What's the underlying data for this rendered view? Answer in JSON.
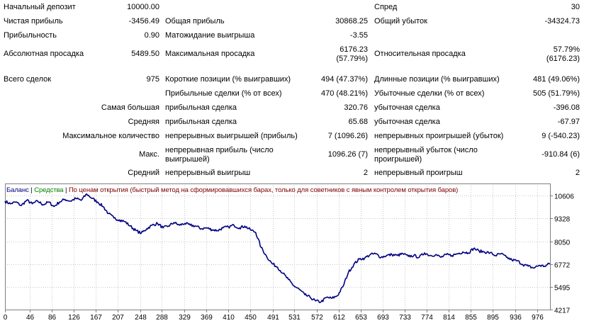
{
  "stats": {
    "r1": {
      "label_a": "Начальный депозит",
      "val_a": "10000.00",
      "label_c": "Спред",
      "val_c": "30"
    },
    "r2": {
      "label_a": "Чистая прибыль",
      "val_a": "-3456.49",
      "label_b": "Общая прибыль",
      "val_b": "30868.25",
      "label_c": "Общий убыток",
      "val_c": "-34324.73"
    },
    "r3": {
      "label_a": "Прибыльность",
      "val_a": "0.90",
      "label_b": "Матожидание выигрыша",
      "val_b": "-3.55"
    },
    "r4": {
      "label_a": "Абсолютная просадка",
      "val_a": "5489.50",
      "label_b": "Максимальная просадка",
      "val_b1": "6176.23",
      "val_b2": "(57.79%)",
      "label_c": "Относительная просадка",
      "val_c1": "57.79%",
      "val_c2": "(6176.23)"
    },
    "r5": {
      "label_a": "Всего сделок",
      "val_a": "975",
      "label_b": "Короткие позиции (% выигравших)",
      "val_b": "494 (47.37%)",
      "label_c": "Длинные позиции (% выигравших)",
      "val_c": "481 (49.06%)"
    },
    "r6": {
      "label_b": "Прибыльные сделки (% от всех)",
      "val_b": "470 (48.21%)",
      "label_c": "Убыточные сделки (% от всех)",
      "val_c": "505 (51.79%)"
    },
    "r7": {
      "label_a": "Самая большая",
      "label_b": "прибыльная сделка",
      "val_b": "320.76",
      "label_c": "убыточная сделка",
      "val_c": "-396.08"
    },
    "r8": {
      "label_a": "Средняя",
      "label_b": "прибыльная сделка",
      "val_b": "65.68",
      "label_c": "убыточная сделка",
      "val_c": "-67.97"
    },
    "r9": {
      "label_a": "Максимальное количество",
      "label_b": "непрерывных выигрышей (прибыль)",
      "val_b": "7 (1096.26)",
      "label_c": "непрерывных проигрышей (убыток)",
      "val_c": "9 (-540.23)"
    },
    "r10": {
      "label_a": "Макс.",
      "label_b": "непрерывная прибыль (число выигрышей)",
      "val_b": "1096.26 (7)",
      "label_c": "непрерывный убыток (число проигрышей)",
      "val_c": "-910.84 (6)"
    },
    "r11": {
      "label_a": "Средний",
      "label_b": "непрерывный выигрыш",
      "val_b": "2",
      "label_c": "непрерывный проигрыш",
      "val_c": "2"
    }
  },
  "legend": {
    "balance": "Баланс",
    "sep1": " | ",
    "equity": "Средства",
    "sep2": " | ",
    "mode": "По ценам открытия (быстрый метод на сформировавшихся барах, только для советников с явным контролем открытия баров)"
  },
  "colors": {
    "balance": "#000080",
    "equity": "#008000",
    "mode": "#800000",
    "grid": "#c8c8c8",
    "frame": "#7f7f7f"
  },
  "chart_data": {
    "type": "line",
    "xlim": [
      0,
      1000
    ],
    "ylim": [
      4217,
      11290
    ],
    "x_ticks": [
      0,
      46,
      86,
      126,
      167,
      207,
      248,
      288,
      329,
      369,
      410,
      450,
      491,
      531,
      572,
      612,
      653,
      693,
      733,
      774,
      814,
      855,
      895,
      936,
      976
    ],
    "y_ticks": [
      10606,
      9328,
      8050,
      6772,
      5495,
      4217
    ],
    "series": [
      {
        "name": "Баланс",
        "points": [
          [
            0,
            10300
          ],
          [
            10,
            10150
          ],
          [
            20,
            10250
          ],
          [
            30,
            10050
          ],
          [
            40,
            10350
          ],
          [
            50,
            10150
          ],
          [
            60,
            10300
          ],
          [
            70,
            10100
          ],
          [
            80,
            10250
          ],
          [
            90,
            10000
          ],
          [
            100,
            10250
          ],
          [
            110,
            10400
          ],
          [
            120,
            10300
          ],
          [
            130,
            10450
          ],
          [
            140,
            10350
          ],
          [
            150,
            10700
          ],
          [
            160,
            10450
          ],
          [
            170,
            10250
          ],
          [
            180,
            10000
          ],
          [
            190,
            9600
          ],
          [
            200,
            9350
          ],
          [
            210,
            9250
          ],
          [
            220,
            9150
          ],
          [
            230,
            8900
          ],
          [
            240,
            8650
          ],
          [
            250,
            8500
          ],
          [
            260,
            8750
          ],
          [
            270,
            8950
          ],
          [
            280,
            9050
          ],
          [
            290,
            8800
          ],
          [
            300,
            8900
          ],
          [
            310,
            9100
          ],
          [
            320,
            8950
          ],
          [
            330,
            9050
          ],
          [
            340,
            8950
          ],
          [
            350,
            8900
          ],
          [
            360,
            8750
          ],
          [
            370,
            8800
          ],
          [
            380,
            8700
          ],
          [
            390,
            8650
          ],
          [
            400,
            8800
          ],
          [
            410,
            8850
          ],
          [
            420,
            8950
          ],
          [
            430,
            8800
          ],
          [
            440,
            8900
          ],
          [
            450,
            8700
          ],
          [
            460,
            8550
          ],
          [
            470,
            7700
          ],
          [
            480,
            7200
          ],
          [
            490,
            6800
          ],
          [
            500,
            6600
          ],
          [
            510,
            6250
          ],
          [
            520,
            5900
          ],
          [
            530,
            5550
          ],
          [
            540,
            5350
          ],
          [
            550,
            5050
          ],
          [
            560,
            4900
          ],
          [
            570,
            4700
          ],
          [
            580,
            4650
          ],
          [
            590,
            4900
          ],
          [
            600,
            4850
          ],
          [
            610,
            5000
          ],
          [
            620,
            5500
          ],
          [
            630,
            6300
          ],
          [
            640,
            6750
          ],
          [
            650,
            7050
          ],
          [
            660,
            7100
          ],
          [
            670,
            7300
          ],
          [
            680,
            7350
          ],
          [
            690,
            7150
          ],
          [
            700,
            7250
          ],
          [
            710,
            7300
          ],
          [
            720,
            7250
          ],
          [
            730,
            7350
          ],
          [
            740,
            7200
          ],
          [
            750,
            7250
          ],
          [
            760,
            7150
          ],
          [
            770,
            7400
          ],
          [
            780,
            7250
          ],
          [
            790,
            7300
          ],
          [
            800,
            7150
          ],
          [
            810,
            7300
          ],
          [
            820,
            7250
          ],
          [
            830,
            7350
          ],
          [
            840,
            7450
          ],
          [
            850,
            7400
          ],
          [
            860,
            7650
          ],
          [
            870,
            7500
          ],
          [
            880,
            7450
          ],
          [
            890,
            7400
          ],
          [
            900,
            7250
          ],
          [
            910,
            7350
          ],
          [
            920,
            7150
          ],
          [
            930,
            7000
          ],
          [
            940,
            6950
          ],
          [
            950,
            6750
          ],
          [
            960,
            6650
          ],
          [
            970,
            6550
          ],
          [
            980,
            6700
          ],
          [
            990,
            6650
          ],
          [
            1000,
            6800
          ]
        ]
      }
    ]
  }
}
